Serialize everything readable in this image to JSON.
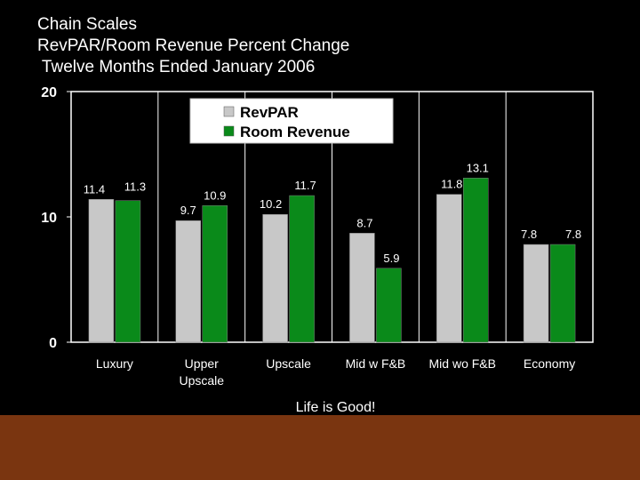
{
  "slide": {
    "title_lines": [
      "Chain Scales",
      "RevPAR/Room Revenue Percent Change",
      " Twelve Months Ended January 2006"
    ],
    "caption": "Life is Good!",
    "colors": {
      "background": "#000000",
      "footer_band": "#7a3510",
      "text": "#ffffff"
    }
  },
  "chart_data": {
    "type": "bar",
    "title": "",
    "xlabel": "",
    "ylabel": "",
    "categories": [
      [
        "Luxury"
      ],
      [
        "Upper",
        "Upscale"
      ],
      [
        "Upscale"
      ],
      [
        "Mid w F&B"
      ],
      [
        "Mid wo F&B"
      ],
      [
        "Economy"
      ]
    ],
    "series": [
      {
        "name": "RevPAR",
        "values": [
          11.4,
          9.7,
          10.2,
          8.7,
          11.8,
          7.8
        ],
        "color": "#c8c8c8"
      },
      {
        "name": "Room Revenue",
        "values": [
          11.3,
          10.9,
          11.7,
          5.9,
          13.1,
          7.8
        ],
        "color": "#0a8a1a"
      }
    ],
    "value_labels": [
      [
        "11.4",
        "9.7",
        "10.2",
        "8.7",
        "11.8",
        "7.8"
      ],
      [
        "11.3",
        "10.9",
        "11.7",
        "5.9",
        "13.1",
        "7.8"
      ]
    ],
    "ylim": [
      0,
      20
    ],
    "yticks": [
      "0",
      "10",
      "20"
    ],
    "grid": "vertical",
    "legend": "top-center",
    "plot_background": "#000000"
  }
}
